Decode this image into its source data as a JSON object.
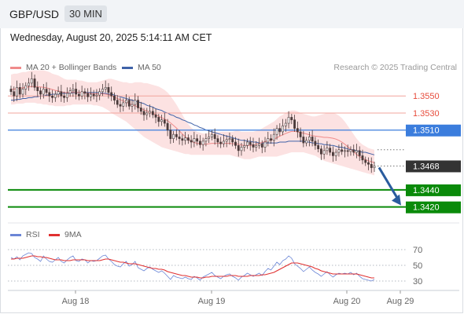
{
  "header": {
    "pair": "GBP/USD",
    "timeframe": "30 MIN",
    "datetime": "Wednesday, August 20, 2025 5:14:11 AM CET"
  },
  "legend": {
    "ma20": "MA 20 + Bollinger Bands",
    "ma50": "MA 50",
    "ma20_color": "#f08b8b",
    "ma50_color": "#3f62a8"
  },
  "credit": "Research © 2025 Trading Central",
  "rsi_legend": {
    "rsi": "RSI",
    "ma9": "9MA",
    "rsi_color": "#6b86d6",
    "ma9_color": "#e03030"
  },
  "colors": {
    "resistance": "#e74c3c",
    "pivot": "#3b7ddd",
    "support": "#0a8a0a",
    "last_price": "#333333",
    "arrow": "#2a5c9e",
    "candle": "#4a3a3a"
  },
  "chart_data": [
    {
      "type": "candlestick",
      "y_range": [
        1.3405,
        1.3575
      ],
      "levels": [
        {
          "label": "1.3550",
          "value": 1.355,
          "kind": "resistance"
        },
        {
          "label": "1.3530",
          "value": 1.353,
          "kind": "resistance"
        },
        {
          "label": "1.3510",
          "value": 1.351,
          "kind": "pivot"
        },
        {
          "label": "1.3468",
          "value": 1.3468,
          "kind": "last"
        },
        {
          "label": "1.3440",
          "value": 1.344,
          "kind": "support"
        },
        {
          "label": "1.3420",
          "value": 1.342,
          "kind": "support"
        }
      ],
      "close": [
        1.3555,
        1.355,
        1.356,
        1.3552,
        1.3558,
        1.3562,
        1.3565,
        1.357,
        1.356,
        1.3556,
        1.3552,
        1.3558,
        1.3554,
        1.355,
        1.3548,
        1.3552,
        1.3555,
        1.355,
        1.3548,
        1.3553,
        1.3556,
        1.3558,
        1.3552,
        1.355,
        1.3555,
        1.3553,
        1.3549,
        1.3552,
        1.355,
        1.3551,
        1.3555,
        1.3558,
        1.356,
        1.3554,
        1.355,
        1.3545,
        1.354,
        1.3538,
        1.3542,
        1.3545,
        1.3538,
        1.354,
        1.3545,
        1.3536,
        1.3532,
        1.3528,
        1.353,
        1.3532,
        1.3528,
        1.3525,
        1.352,
        1.3522,
        1.3518,
        1.351,
        1.35,
        1.3505,
        1.3502,
        1.35,
        1.3498,
        1.3501,
        1.3498,
        1.3496,
        1.35,
        1.3497,
        1.3493,
        1.3497,
        1.35,
        1.3502,
        1.3505,
        1.35,
        1.3496,
        1.3494,
        1.3497,
        1.3499,
        1.35,
        1.3496,
        1.3492,
        1.3486,
        1.349,
        1.3492,
        1.3496,
        1.3493,
        1.349,
        1.3492,
        1.3494,
        1.349,
        1.3496,
        1.35,
        1.3498,
        1.3505,
        1.3512,
        1.3508,
        1.3515,
        1.3518,
        1.3525,
        1.3522,
        1.3512,
        1.3508,
        1.3502,
        1.3495,
        1.3498,
        1.3502,
        1.3497,
        1.3492,
        1.3488,
        1.3482,
        1.3486,
        1.3489,
        1.3484,
        1.348,
        1.3484,
        1.3487,
        1.3485,
        1.3486,
        1.3485,
        1.3487,
        1.3484,
        1.3486,
        1.348,
        1.3475,
        1.3472,
        1.347,
        1.3466,
        1.3468
      ],
      "bb_upper": [
        1.3575,
        1.3576,
        1.3576,
        1.3577,
        1.3578,
        1.3578,
        1.3579,
        1.358,
        1.358,
        1.358,
        1.358,
        1.358,
        1.3579,
        1.3578,
        1.3576,
        1.3575,
        1.3574,
        1.3572,
        1.357,
        1.3569,
        1.3569,
        1.3569,
        1.3569,
        1.3568,
        1.3568,
        1.3567,
        1.3566,
        1.3566,
        1.3566,
        1.3566,
        1.3567,
        1.3568,
        1.3569,
        1.357,
        1.357,
        1.3569,
        1.3568,
        1.3567,
        1.3566,
        1.3566,
        1.3565,
        1.3565,
        1.3566,
        1.3566,
        1.3566,
        1.3565,
        1.3565,
        1.3564,
        1.3563,
        1.3562,
        1.3561,
        1.3559,
        1.3557,
        1.3554,
        1.355,
        1.3545,
        1.354,
        1.3534,
        1.3528,
        1.3522,
        1.3517,
        1.3513,
        1.351,
        1.3508,
        1.3507,
        1.3506,
        1.3506,
        1.3507,
        1.3508,
        1.3508,
        1.3508,
        1.3508,
        1.3508,
        1.3508,
        1.3508,
        1.3508,
        1.3509,
        1.3509,
        1.3508,
        1.3508,
        1.3508,
        1.3508,
        1.3508,
        1.3509,
        1.351,
        1.3512,
        1.3514,
        1.3516,
        1.3518,
        1.352,
        1.3523,
        1.3526,
        1.3528,
        1.353,
        1.3532,
        1.3533,
        1.3533,
        1.3532,
        1.353,
        1.3529,
        1.3528,
        1.3527,
        1.3526,
        1.3526,
        1.3527,
        1.3528,
        1.3529,
        1.353,
        1.353,
        1.353,
        1.3529,
        1.3527,
        1.3524,
        1.352,
        1.3515,
        1.351,
        1.3505,
        1.35,
        1.3496,
        1.3493,
        1.3491,
        1.3489,
        1.3488,
        1.3487
      ],
      "bb_lower": [
        1.354,
        1.354,
        1.3541,
        1.3541,
        1.3541,
        1.3542,
        1.3542,
        1.3542,
        1.3542,
        1.3541,
        1.3541,
        1.354,
        1.354,
        1.3539,
        1.3539,
        1.3538,
        1.3538,
        1.3538,
        1.3538,
        1.3539,
        1.3539,
        1.354,
        1.354,
        1.354,
        1.354,
        1.354,
        1.354,
        1.354,
        1.3539,
        1.3539,
        1.3538,
        1.3537,
        1.3535,
        1.3533,
        1.353,
        1.3528,
        1.3526,
        1.3524,
        1.3522,
        1.352,
        1.3517,
        1.3514,
        1.3511,
        1.3508,
        1.3505,
        1.3502,
        1.35,
        1.3498,
        1.3496,
        1.3494,
        1.3492,
        1.349,
        1.3489,
        1.3488,
        1.3487,
        1.3486,
        1.3485,
        1.3484,
        1.3483,
        1.3482,
        1.3482,
        1.3481,
        1.3481,
        1.3481,
        1.3481,
        1.3481,
        1.3481,
        1.3481,
        1.3481,
        1.3481,
        1.3481,
        1.3481,
        1.3481,
        1.3481,
        1.3481,
        1.348,
        1.3479,
        1.3478,
        1.3477,
        1.3476,
        1.3476,
        1.3476,
        1.3477,
        1.3478,
        1.3479,
        1.3479,
        1.3479,
        1.3479,
        1.3479,
        1.3479,
        1.3479,
        1.348,
        1.3481,
        1.3482,
        1.3483,
        1.3484,
        1.3484,
        1.3484,
        1.3484,
        1.3484,
        1.3483,
        1.3482,
        1.3481,
        1.348,
        1.3478,
        1.3476,
        1.3474,
        1.3473,
        1.3472,
        1.3471,
        1.347,
        1.3469,
        1.3468,
        1.3467,
        1.3466,
        1.3465,
        1.3464,
        1.3463,
        1.3462,
        1.3461,
        1.346,
        1.3459,
        1.3458,
        1.3457
      ],
      "ma50": [
        1.3545,
        1.3545,
        1.3546,
        1.3546,
        1.3547,
        1.3547,
        1.3548,
        1.3548,
        1.3549,
        1.3549,
        1.355,
        1.355,
        1.3551,
        1.3551,
        1.3552,
        1.3552,
        1.3552,
        1.3553,
        1.3553,
        1.3553,
        1.3553,
        1.3554,
        1.3554,
        1.3554,
        1.3554,
        1.3554,
        1.3554,
        1.3554,
        1.3554,
        1.3554,
        1.3554,
        1.3553,
        1.3553,
        1.3552,
        1.3552,
        1.3551,
        1.355,
        1.3549,
        1.3548,
        1.3547,
        1.3546,
        1.3545,
        1.3544,
        1.3543,
        1.3542,
        1.3541,
        1.3539,
        1.3538,
        1.3537,
        1.3535,
        1.3534,
        1.3533,
        1.3531,
        1.353,
        1.3528,
        1.3527,
        1.3525,
        1.3524,
        1.3522,
        1.3521,
        1.3519,
        1.3518,
        1.3516,
        1.3515,
        1.3513,
        1.3512,
        1.351,
        1.3509,
        1.3508,
        1.3507,
        1.3506,
        1.3505,
        1.3504,
        1.3503,
        1.3502,
        1.3501,
        1.35,
        1.3499,
        1.3498,
        1.3498,
        1.3497,
        1.3497,
        1.3496,
        1.3496,
        1.3495,
        1.3495,
        1.3495,
        1.3495,
        1.3495,
        1.3495,
        1.3495,
        1.3496,
        1.3496,
        1.3496,
        1.3497,
        1.3497,
        1.3497,
        1.3497,
        1.3497,
        1.3497,
        1.3496,
        1.3496,
        1.3495,
        1.3495,
        1.3494,
        1.3494,
        1.3493,
        1.3493,
        1.3492,
        1.3492,
        1.3491,
        1.349,
        1.349,
        1.3489,
        1.3488,
        1.3487,
        1.3487,
        1.3486,
        1.3485,
        1.3484,
        1.3484,
        1.3483,
        1.3482,
        1.3481
      ]
    },
    {
      "type": "line",
      "title": "RSI",
      "y_ticks": [
        30,
        50,
        70
      ],
      "y_range": [
        20,
        80
      ],
      "series": [
        {
          "name": "RSI",
          "values": [
            60,
            58,
            61,
            57,
            62,
            64,
            66,
            65,
            60,
            58,
            55,
            62,
            58,
            55,
            54,
            57,
            60,
            55,
            53,
            57,
            60,
            62,
            56,
            55,
            58,
            57,
            53,
            56,
            55,
            56,
            59,
            62,
            63,
            58,
            55,
            51,
            49,
            48,
            52,
            55,
            49,
            51,
            55,
            47,
            45,
            43,
            46,
            48,
            45,
            43,
            41,
            43,
            40,
            36,
            32,
            37,
            35,
            34,
            33,
            35,
            33,
            32,
            36,
            34,
            31,
            35,
            37,
            39,
            41,
            37,
            35,
            33,
            36,
            38,
            39,
            36,
            34,
            31,
            35,
            37,
            40,
            38,
            36,
            38,
            40,
            37,
            42,
            46,
            44,
            49,
            54,
            51,
            56,
            58,
            62,
            59,
            52,
            49,
            46,
            42,
            45,
            48,
            44,
            41,
            39,
            36,
            39,
            42,
            38,
            35,
            38,
            40,
            39,
            40,
            39,
            41,
            38,
            40,
            36,
            33,
            32,
            31,
            30,
            32
          ]
        },
        {
          "name": "9MA",
          "values": [
            58,
            58,
            59,
            59,
            59,
            60,
            61,
            62,
            62,
            61,
            61,
            60,
            60,
            59,
            58,
            57,
            57,
            57,
            56,
            56,
            56,
            57,
            57,
            57,
            57,
            57,
            56,
            56,
            56,
            56,
            56,
            57,
            58,
            58,
            57,
            56,
            55,
            54,
            54,
            53,
            52,
            52,
            52,
            51,
            50,
            49,
            48,
            47,
            46,
            46,
            45,
            45,
            44,
            42,
            41,
            40,
            39,
            38,
            37,
            37,
            36,
            35,
            35,
            35,
            34,
            34,
            35,
            35,
            36,
            36,
            36,
            36,
            36,
            36,
            37,
            37,
            37,
            36,
            36,
            36,
            36,
            37,
            37,
            37,
            37,
            38,
            38,
            39,
            40,
            41,
            43,
            45,
            47,
            49,
            51,
            53,
            53,
            53,
            52,
            51,
            50,
            49,
            48,
            46,
            45,
            43,
            42,
            41,
            40,
            39,
            39,
            39,
            39,
            39,
            39,
            39,
            39,
            39,
            38,
            37,
            36,
            35,
            34,
            34
          ]
        }
      ]
    }
  ],
  "x_axis": {
    "ticks": [
      "Aug 18",
      "Aug 19",
      "Aug 20",
      "Aug 29"
    ]
  }
}
